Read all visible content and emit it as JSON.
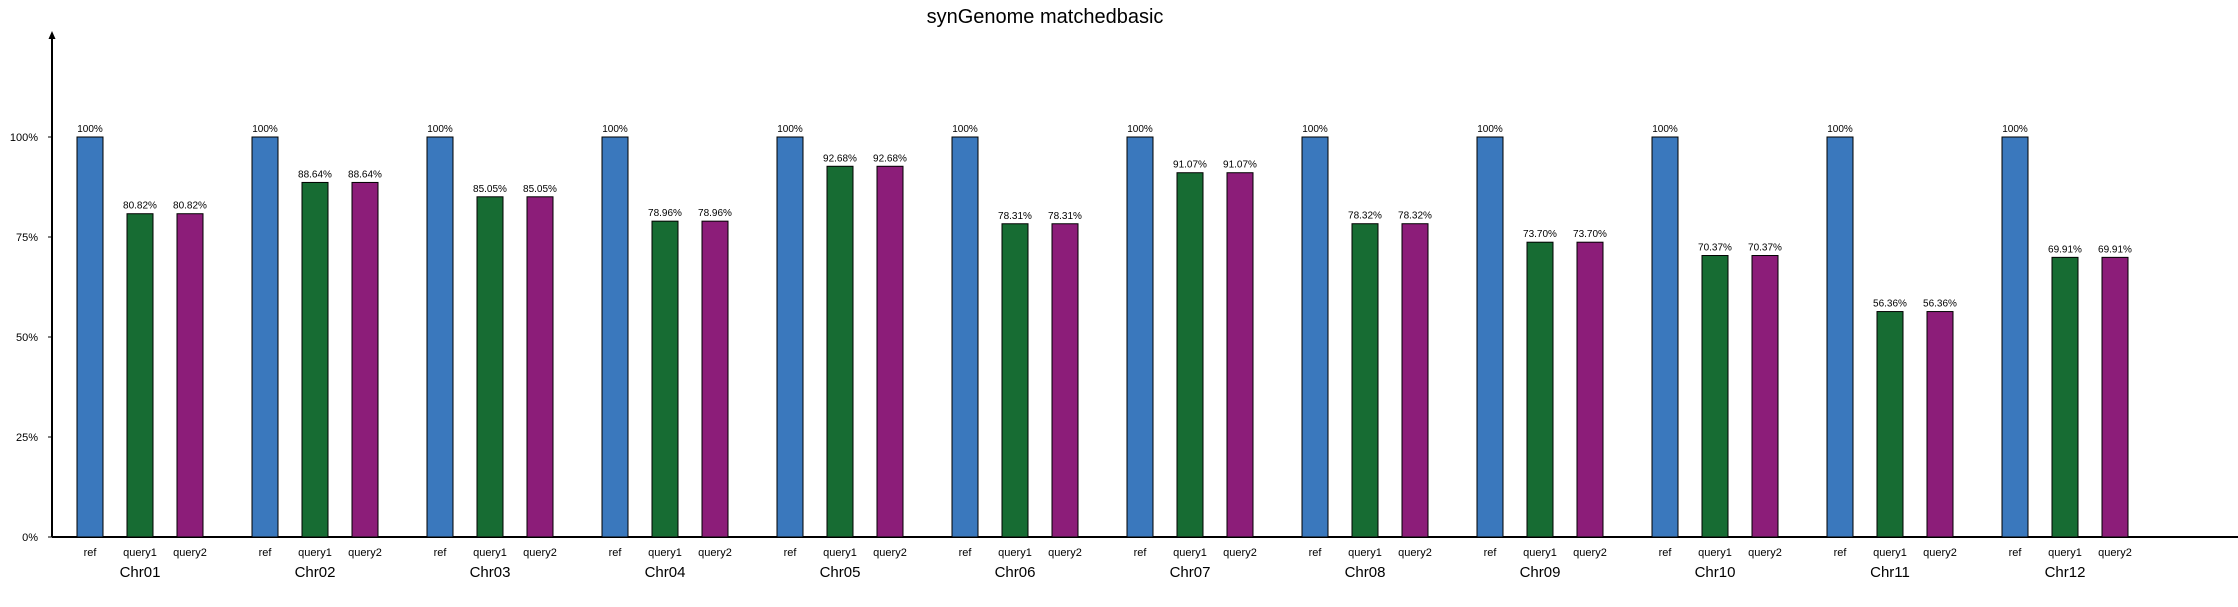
{
  "chart_data": {
    "type": "bar",
    "title": "synGenome matchedbasic",
    "xlabel": "",
    "ylabel": "",
    "ylim": [
      0,
      100
    ],
    "y_ticks": [
      "0%",
      "25%",
      "50%",
      "75%",
      "100%"
    ],
    "grid": false,
    "legend": "none",
    "bar_labels": [
      "ref",
      "query1",
      "query2"
    ],
    "colors": [
      "#3a78bd",
      "#176c33",
      "#8c1d79"
    ],
    "categories": [
      "Chr01",
      "Chr02",
      "Chr03",
      "Chr04",
      "Chr05",
      "Chr06",
      "Chr07",
      "Chr08",
      "Chr09",
      "Chr10",
      "Chr11",
      "Chr12"
    ],
    "series": [
      {
        "values": [
          100,
          100,
          100,
          100,
          100,
          100,
          100,
          100,
          100,
          100,
          100,
          100
        ],
        "value_labels": [
          "100%",
          "100%",
          "100%",
          "100%",
          "100%",
          "100%",
          "100%",
          "100%",
          "100%",
          "100%",
          "100%",
          "100%"
        ]
      },
      {
        "values": [
          80.82,
          88.64,
          85.05,
          78.96,
          92.68,
          78.31,
          91.07,
          78.32,
          73.7,
          70.37,
          56.36,
          69.91
        ],
        "value_labels": [
          "80.82%",
          "88.64%",
          "85.05%",
          "78.96%",
          "92.68%",
          "78.31%",
          "91.07%",
          "78.32%",
          "73.70%",
          "70.37%",
          "56.36%",
          "69.91%"
        ]
      },
      {
        "values": [
          80.82,
          88.64,
          85.05,
          78.96,
          92.68,
          78.31,
          91.07,
          78.32,
          73.7,
          70.37,
          56.36,
          69.91
        ],
        "value_labels": [
          "80.82%",
          "88.64%",
          "85.05%",
          "78.96%",
          "92.68%",
          "78.31%",
          "91.07%",
          "78.32%",
          "73.70%",
          "70.37%",
          "56.36%",
          "69.91%"
        ]
      }
    ]
  }
}
